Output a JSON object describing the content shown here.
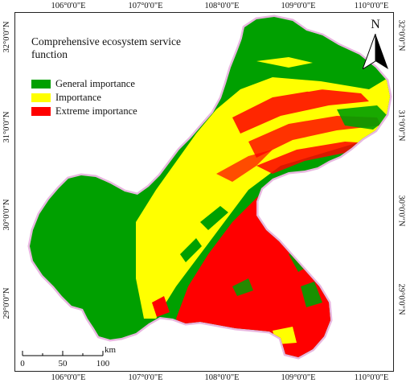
{
  "axes": {
    "top_ticks": [
      "106°0'0\"E",
      "107°0'0\"E",
      "108°0'0\"E",
      "109°0'0\"E",
      "110°0'0\"E"
    ],
    "bottom_ticks": [
      "106°0'0\"E",
      "107°0'0\"E",
      "108°0'0\"E",
      "109°0'0\"E",
      "110°0'0\"E"
    ],
    "left_ticks": [
      "32°0'0\"N",
      "31°0'0\"N",
      "30°0'0\"N",
      "29°0'0\"N"
    ],
    "right_ticks": [
      "32°0'0\"N",
      "31°0'0\"N",
      "30°0'0\"N",
      "29°0'0\"N"
    ]
  },
  "legend": {
    "title": "Comprehensive ecosystem service function",
    "items": [
      {
        "label": "General importance",
        "color": "#00a000"
      },
      {
        "label": "Importance",
        "color": "#ffff00"
      },
      {
        "label": "Extreme importance",
        "color": "#ff0000"
      }
    ]
  },
  "north_arrow": {
    "label": "N",
    "icon": "north-arrow-icon"
  },
  "scale_bar": {
    "labels": [
      "0",
      "50",
      "100"
    ],
    "unit": "km"
  },
  "colors": {
    "general": "#00a000",
    "important": "#ffff00",
    "extreme": "#ff0000",
    "boundary": "#e8b7e0"
  }
}
